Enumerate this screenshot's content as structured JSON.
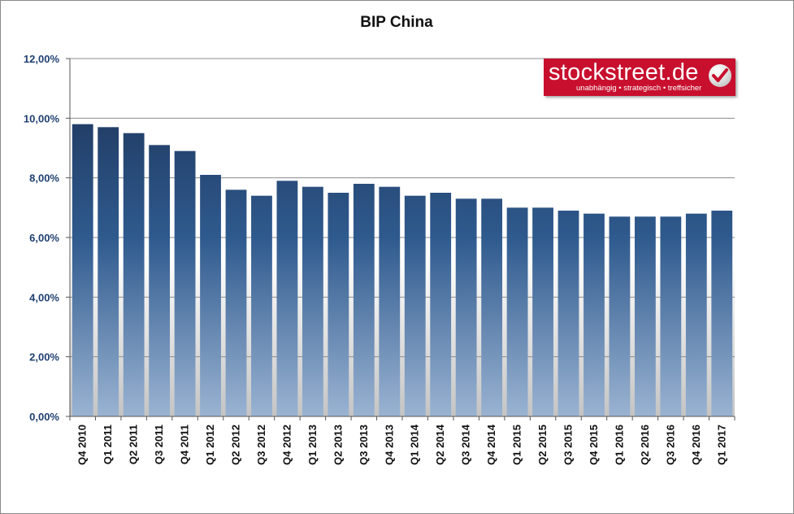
{
  "chart_data": {
    "type": "bar",
    "title": "BIP China",
    "xlabel": "",
    "ylabel": "",
    "ylim": [
      0,
      12
    ],
    "yticks": [
      "0,00%",
      "2,00%",
      "4,00%",
      "6,00%",
      "8,00%",
      "10,00%",
      "12,00%"
    ],
    "grid": true,
    "categories": [
      "Q4 2010",
      "Q1 2011",
      "Q2 2011",
      "Q3 2011",
      "Q4 2011",
      "Q1 2012",
      "Q2 2012",
      "Q3 2012",
      "Q4 2012",
      "Q1 2013",
      "Q2 2013",
      "Q3 2013",
      "Q4 2013",
      "Q1 2014",
      "Q2 2014",
      "Q3 2014",
      "Q4 2014",
      "Q1 2015",
      "Q2 2015",
      "Q3 2015",
      "Q4 2015",
      "Q1 2016",
      "Q2 2016",
      "Q3 2016",
      "Q4 2016",
      "Q1 2017"
    ],
    "values": [
      9.8,
      9.7,
      9.5,
      9.1,
      8.9,
      8.1,
      7.6,
      7.4,
      7.9,
      7.7,
      7.5,
      7.8,
      7.7,
      7.4,
      7.5,
      7.3,
      7.3,
      7.0,
      7.0,
      6.9,
      6.8,
      6.7,
      6.7,
      6.7,
      6.8,
      6.9
    ],
    "colors": {
      "bar_top": "#1b2f52",
      "bar_mid": "#2f5a8e",
      "bar_bottom": "#9ab3d2",
      "plot_bottom": "#c4c4c4",
      "grid": "#8c8c8c"
    }
  },
  "logo": {
    "name": "stockstreet.de",
    "tagline": "unabhängig • strategisch • treffsicher"
  }
}
